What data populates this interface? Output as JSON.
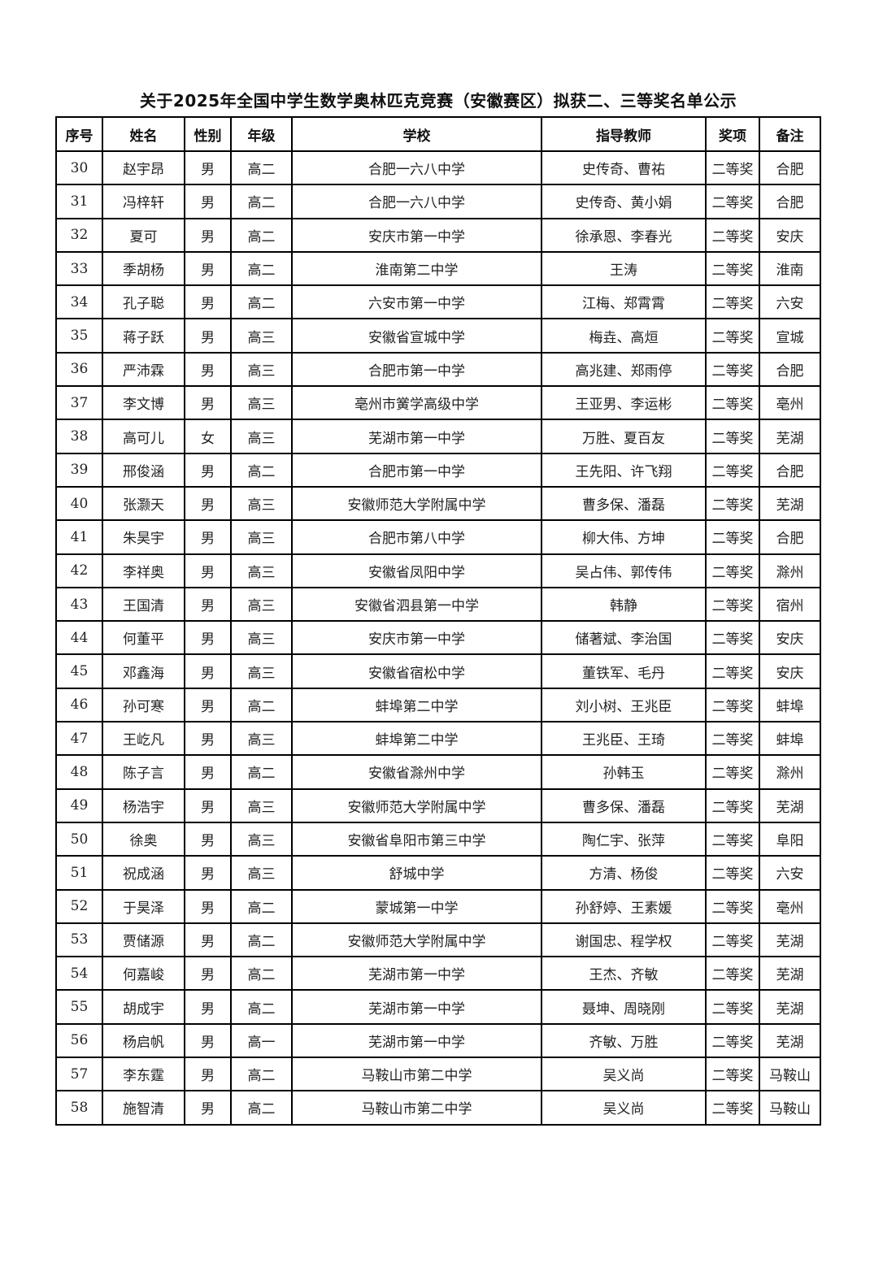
{
  "document": {
    "title": "关于2025年全国中学生数学奥林匹克竞赛（安徽赛区）拟获二、三等奖名单公示"
  },
  "table": {
    "headers": [
      "序号",
      "姓名",
      "性别",
      "年级",
      "学校",
      "指导教师",
      "奖项",
      "备注"
    ],
    "rows": [
      [
        "30",
        "赵宇昂",
        "男",
        "高二",
        "合肥一六八中学",
        "史传奇、曹祐",
        "二等奖",
        "合肥"
      ],
      [
        "31",
        "冯梓轩",
        "男",
        "高二",
        "合肥一六八中学",
        "史传奇、黄小娟",
        "二等奖",
        "合肥"
      ],
      [
        "32",
        "夏可",
        "男",
        "高二",
        "安庆市第一中学",
        "徐承恩、李春光",
        "二等奖",
        "安庆"
      ],
      [
        "33",
        "季胡杨",
        "男",
        "高二",
        "淮南第二中学",
        "王涛",
        "二等奖",
        "淮南"
      ],
      [
        "34",
        "孔子聪",
        "男",
        "高二",
        "六安市第一中学",
        "江梅、郑霄霄",
        "二等奖",
        "六安"
      ],
      [
        "35",
        "蒋子跃",
        "男",
        "高三",
        "安徽省宣城中学",
        "梅垚、高烜",
        "二等奖",
        "宣城"
      ],
      [
        "36",
        "严沛霖",
        "男",
        "高三",
        "合肥市第一中学",
        "高兆建、郑雨停",
        "二等奖",
        "合肥"
      ],
      [
        "37",
        "李文博",
        "男",
        "高三",
        "亳州市黉学高级中学",
        "王亚男、李运彬",
        "二等奖",
        "亳州"
      ],
      [
        "38",
        "高可儿",
        "女",
        "高三",
        "芜湖市第一中学",
        "万胜、夏百友",
        "二等奖",
        "芜湖"
      ],
      [
        "39",
        "邢俊涵",
        "男",
        "高二",
        "合肥市第一中学",
        "王先阳、许飞翔",
        "二等奖",
        "合肥"
      ],
      [
        "40",
        "张灏天",
        "男",
        "高三",
        "安徽师范大学附属中学",
        "曹多保、潘磊",
        "二等奖",
        "芜湖"
      ],
      [
        "41",
        "朱昊宇",
        "男",
        "高三",
        "合肥市第八中学",
        "柳大伟、方坤",
        "二等奖",
        "合肥"
      ],
      [
        "42",
        "李祥奥",
        "男",
        "高三",
        "安徽省凤阳中学",
        "吴占伟、郭传伟",
        "二等奖",
        "滁州"
      ],
      [
        "43",
        "王国清",
        "男",
        "高三",
        "安徽省泗县第一中学",
        "韩静",
        "二等奖",
        "宿州"
      ],
      [
        "44",
        "何董平",
        "男",
        "高三",
        "安庆市第一中学",
        "储著斌、李治国",
        "二等奖",
        "安庆"
      ],
      [
        "45",
        "邓鑫海",
        "男",
        "高三",
        "安徽省宿松中学",
        "董铁军、毛丹",
        "二等奖",
        "安庆"
      ],
      [
        "46",
        "孙可寒",
        "男",
        "高二",
        "蚌埠第二中学",
        "刘小树、王兆臣",
        "二等奖",
        "蚌埠"
      ],
      [
        "47",
        "王屹凡",
        "男",
        "高三",
        "蚌埠第二中学",
        "王兆臣、王琦",
        "二等奖",
        "蚌埠"
      ],
      [
        "48",
        "陈子言",
        "男",
        "高二",
        "安徽省滁州中学",
        "孙韩玉",
        "二等奖",
        "滁州"
      ],
      [
        "49",
        "杨浩宇",
        "男",
        "高三",
        "安徽师范大学附属中学",
        "曹多保、潘磊",
        "二等奖",
        "芜湖"
      ],
      [
        "50",
        "徐奥",
        "男",
        "高三",
        "安徽省阜阳市第三中学",
        "陶仁宇、张萍",
        "二等奖",
        "阜阳"
      ],
      [
        "51",
        "祝成涵",
        "男",
        "高三",
        "舒城中学",
        "方清、杨俊",
        "二等奖",
        "六安"
      ],
      [
        "52",
        "于昊泽",
        "男",
        "高二",
        "蒙城第一中学",
        "孙舒婷、王素媛",
        "二等奖",
        "亳州"
      ],
      [
        "53",
        "贾储源",
        "男",
        "高二",
        "安徽师范大学附属中学",
        "谢国忠、程学权",
        "二等奖",
        "芜湖"
      ],
      [
        "54",
        "何嘉峻",
        "男",
        "高二",
        "芜湖市第一中学",
        "王杰、齐敏",
        "二等奖",
        "芜湖"
      ],
      [
        "55",
        "胡成宇",
        "男",
        "高二",
        "芜湖市第一中学",
        "聂坤、周晓刚",
        "二等奖",
        "芜湖"
      ],
      [
        "56",
        "杨启帆",
        "男",
        "高一",
        "芜湖市第一中学",
        "齐敏、万胜",
        "二等奖",
        "芜湖"
      ],
      [
        "57",
        "李东霆",
        "男",
        "高二",
        "马鞍山市第二中学",
        "吴义尚",
        "二等奖",
        "马鞍山"
      ],
      [
        "58",
        "施智清",
        "男",
        "高二",
        "马鞍山市第二中学",
        "吴义尚",
        "二等奖",
        "马鞍山"
      ]
    ]
  }
}
